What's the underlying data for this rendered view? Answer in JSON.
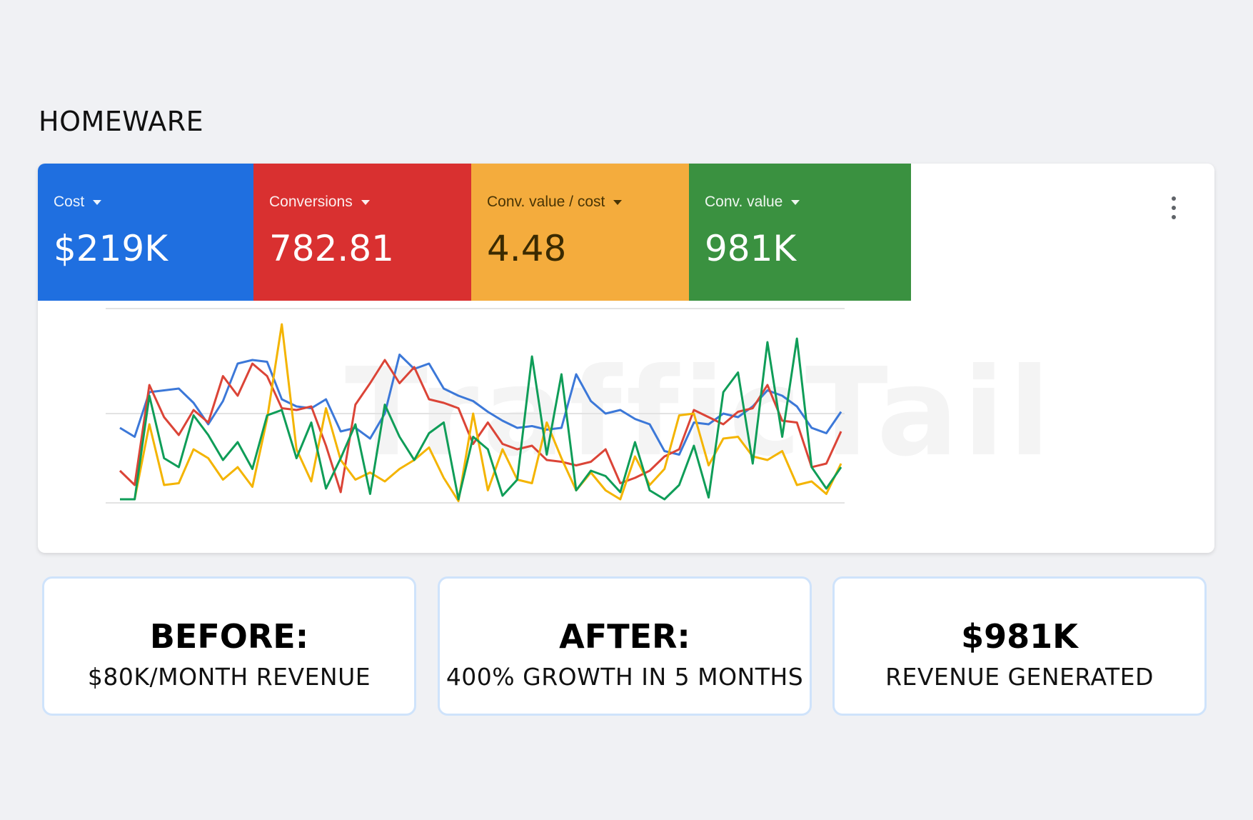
{
  "page": {
    "title": "HOMEWARE"
  },
  "watermark": "TrafficTail",
  "metrics": [
    {
      "label": "Cost",
      "value": "$219K",
      "color": "#1f6fe0",
      "text": "light"
    },
    {
      "label": "Conversions",
      "value": "782.81",
      "color": "#d93030",
      "text": "light"
    },
    {
      "label": "Conv. value / cost",
      "value": "4.48",
      "color": "#f4ac3d",
      "text": "dark"
    },
    {
      "label": "Conv. value",
      "value": "981K",
      "color": "#3a9140",
      "text": "light"
    }
  ],
  "menu": {
    "icon": "more-vert-icon"
  },
  "chart_data": {
    "type": "line",
    "grid": true,
    "ylim": [
      0,
      1
    ],
    "series": [
      {
        "color": "#3c78d8",
        "values": [
          0.42,
          0.37,
          0.62,
          0.63,
          0.64,
          0.56,
          0.44,
          0.57,
          0.78,
          0.8,
          0.79,
          0.58,
          0.54,
          0.53,
          0.58,
          0.4,
          0.42,
          0.36,
          0.5,
          0.83,
          0.75,
          0.78,
          0.64,
          0.6,
          0.57,
          0.51,
          0.46,
          0.42,
          0.43,
          0.41,
          0.42,
          0.72,
          0.57,
          0.5,
          0.52,
          0.47,
          0.44,
          0.29,
          0.27,
          0.45,
          0.44,
          0.5,
          0.48,
          0.54,
          0.63,
          0.6,
          0.54,
          0.42,
          0.39,
          0.51
        ]
      },
      {
        "color": "#db4437",
        "values": [
          0.18,
          0.1,
          0.66,
          0.48,
          0.38,
          0.52,
          0.45,
          0.71,
          0.6,
          0.78,
          0.71,
          0.53,
          0.52,
          0.54,
          0.32,
          0.06,
          0.55,
          0.67,
          0.8,
          0.67,
          0.76,
          0.58,
          0.56,
          0.53,
          0.33,
          0.45,
          0.33,
          0.3,
          0.32,
          0.24,
          0.23,
          0.21,
          0.23,
          0.3,
          0.11,
          0.14,
          0.18,
          0.26,
          0.3,
          0.52,
          0.48,
          0.44,
          0.51,
          0.53,
          0.66,
          0.46,
          0.45,
          0.2,
          0.22,
          0.4
        ]
      },
      {
        "color": "#f4b400",
        "values": [
          0.02,
          0.02,
          0.44,
          0.1,
          0.11,
          0.3,
          0.25,
          0.13,
          0.2,
          0.09,
          0.47,
          1.0,
          0.3,
          0.12,
          0.53,
          0.24,
          0.13,
          0.17,
          0.12,
          0.19,
          0.24,
          0.31,
          0.14,
          0.01,
          0.5,
          0.07,
          0.3,
          0.13,
          0.11,
          0.45,
          0.25,
          0.07,
          0.17,
          0.07,
          0.02,
          0.26,
          0.1,
          0.19,
          0.49,
          0.5,
          0.21,
          0.36,
          0.37,
          0.26,
          0.24,
          0.29,
          0.1,
          0.12,
          0.05,
          0.22
        ]
      },
      {
        "color": "#0f9d58",
        "values": [
          0.02,
          0.02,
          0.6,
          0.25,
          0.2,
          0.49,
          0.38,
          0.24,
          0.34,
          0.19,
          0.49,
          0.52,
          0.25,
          0.45,
          0.08,
          0.25,
          0.44,
          0.05,
          0.55,
          0.37,
          0.24,
          0.39,
          0.45,
          0.02,
          0.37,
          0.3,
          0.04,
          0.13,
          0.82,
          0.27,
          0.72,
          0.07,
          0.18,
          0.15,
          0.06,
          0.34,
          0.07,
          0.02,
          0.1,
          0.32,
          0.03,
          0.62,
          0.73,
          0.22,
          0.9,
          0.37,
          0.92,
          0.2,
          0.08,
          0.2
        ]
      }
    ]
  }
}
